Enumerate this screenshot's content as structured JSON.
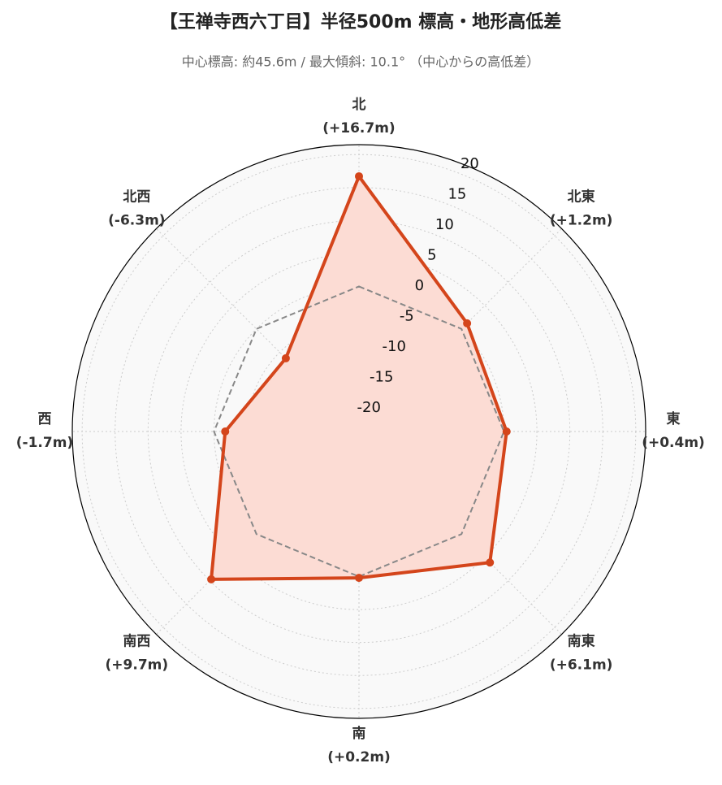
{
  "chart_data": {
    "type": "radar",
    "title": "【王禅寺西六丁目】半径500m 標高・地形高低差",
    "subtitle": "中心標高: 約45.6m / 最大傾斜: 10.1° （中心からの高低差）",
    "categories": [
      "北",
      "北東",
      "東",
      "南東",
      "南",
      "南西",
      "西",
      "北西"
    ],
    "series": [
      {
        "color": "#d4451b",
        "fill": "#fcdcd4",
        "values": [
          16.7,
          1.2,
          0.4,
          6.1,
          0.2,
          9.7,
          -1.7,
          -6.3
        ],
        "value_labels": [
          "(+16.7m)",
          "(+1.2m)",
          "(+0.4m)",
          "(+6.1m)",
          "(+0.2m)",
          "(+9.7m)",
          "(-1.7m)",
          "(-6.3m)"
        ]
      }
    ],
    "reference_line": 0,
    "ylim": [
      -22,
      21.5
    ],
    "yticks": [
      -20,
      -15,
      -10,
      -5,
      0,
      5,
      10,
      15,
      20
    ],
    "grid": true
  }
}
